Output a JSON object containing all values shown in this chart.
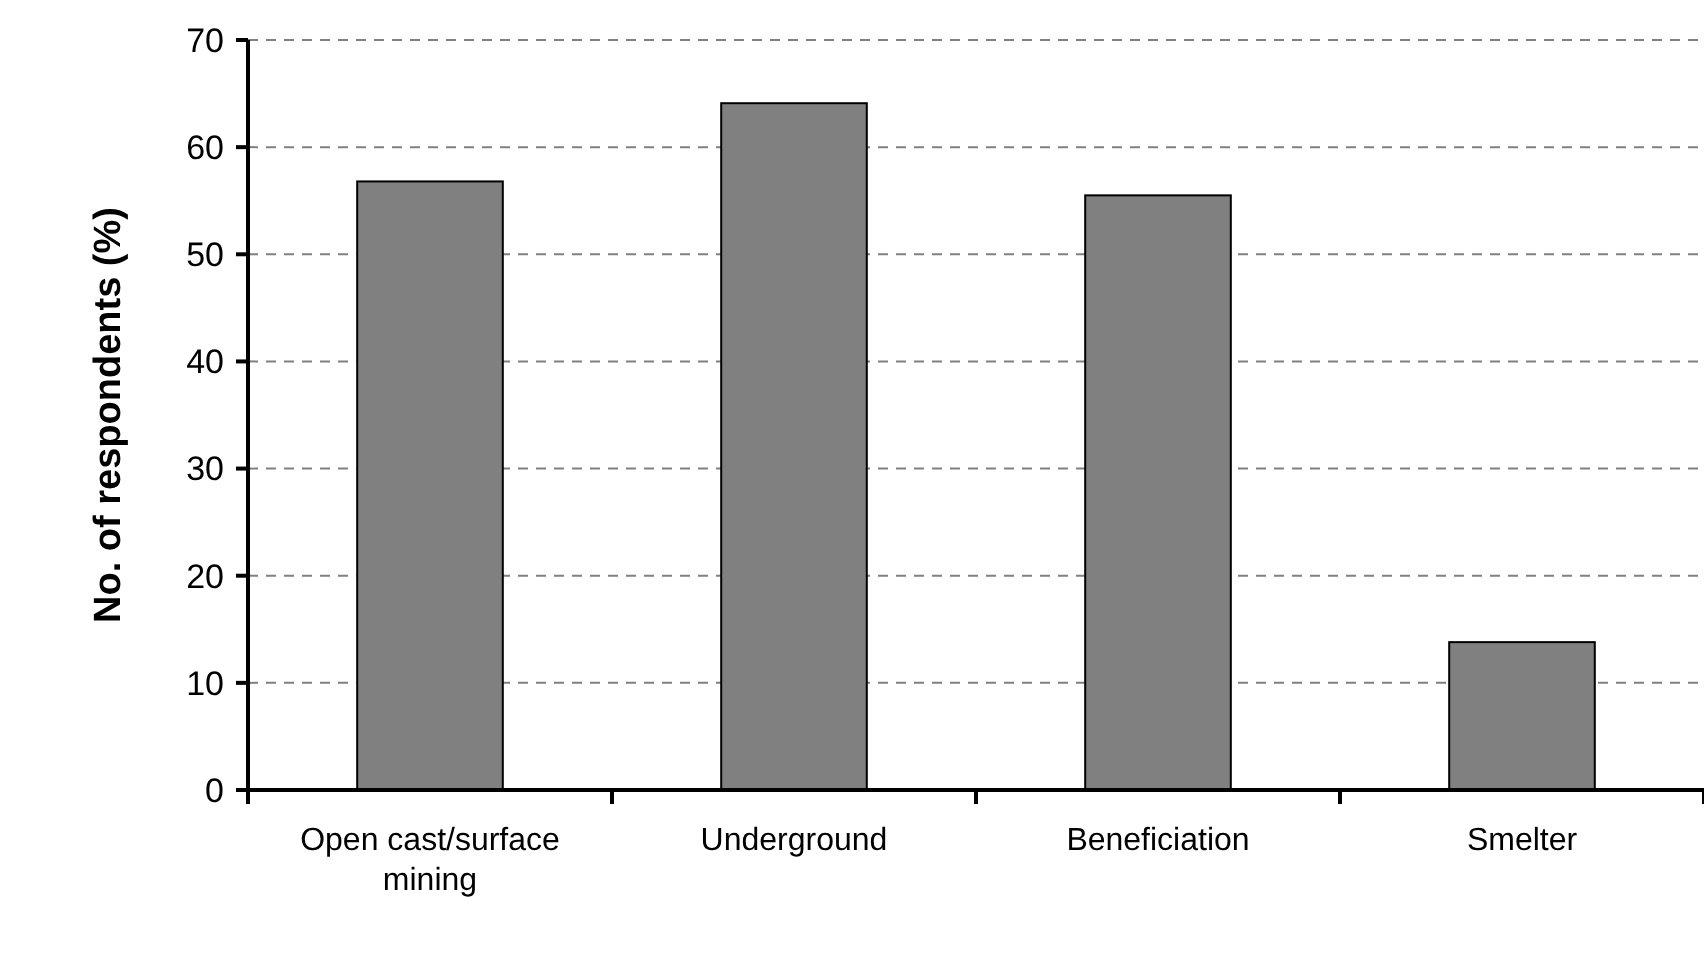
{
  "chart_data": {
    "type": "bar",
    "ylabel": "No. of respondents (%)",
    "categories": [
      "Open cast/surface mining",
      "Underground",
      "Beneficiation",
      "Smelter"
    ],
    "values": [
      56.8,
      64.1,
      55.5,
      13.8
    ],
    "color": "#808080",
    "ylim": [
      0,
      70
    ],
    "yticks": [
      0,
      10,
      20,
      30,
      40,
      50,
      60,
      70
    ],
    "grid": "y"
  }
}
